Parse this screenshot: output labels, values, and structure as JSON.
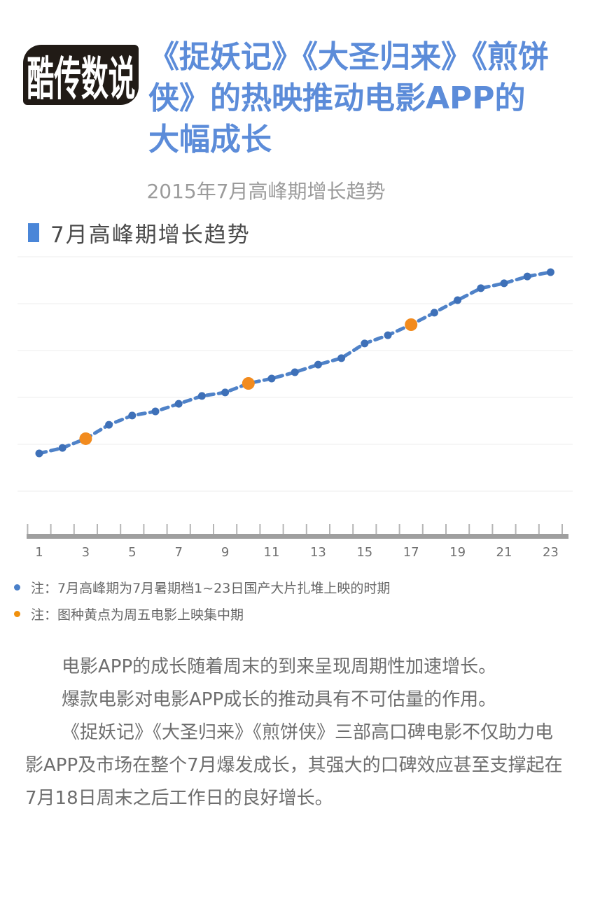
{
  "logo": {
    "text": "酷传数说"
  },
  "header": {
    "title_lines": [
      "《捉妖记》《大圣归来》《煎饼",
      "侠》的热映推动电影APP的",
      "大幅成长"
    ],
    "subtitle": "2015年7月高峰期增长趋势"
  },
  "section": {
    "title": "7月高峰期增长趋势"
  },
  "chart_data": {
    "type": "line",
    "title": "7月高峰期增长趋势",
    "xlabel": "",
    "ylabel": "",
    "x": [
      1,
      2,
      3,
      4,
      5,
      6,
      7,
      8,
      9,
      10,
      11,
      12,
      13,
      14,
      15,
      16,
      17,
      18,
      19,
      20,
      21,
      22,
      23
    ],
    "values": [
      4.3,
      7.1,
      11.8,
      18.9,
      23.6,
      25.7,
      29.6,
      33.6,
      35.4,
      40.0,
      42.5,
      45.7,
      49.6,
      52.9,
      60.4,
      64.6,
      70.0,
      76.1,
      82.5,
      88.6,
      91.1,
      94.6,
      96.8
    ],
    "value_note": "relative growth index estimated from gridlines; no y-axis labels shown",
    "ylim": [
      0,
      100
    ],
    "grid": true,
    "line_style": "dashed",
    "highlight_x": [
      3,
      10,
      17
    ],
    "x_tick_labels": [
      "1",
      "3",
      "5",
      "7",
      "9",
      "11",
      "13",
      "15",
      "17",
      "19",
      "21",
      "23"
    ],
    "line_color": "#4f82c8",
    "point_color": "#3e70b8",
    "highlight_color": "#f28b1e",
    "grid_color": "#ececec",
    "axis_bar_color": "#9f9f9f",
    "tick_color": "#b5b5b5",
    "tick_label_color": "#707070"
  },
  "notes": [
    {
      "text": "注：7月高峰期为7月暑期档1~23日国产大片扎堆上映的时期"
    },
    {
      "text": "注：图种黄点为周五电影上映集中期"
    }
  ],
  "body": {
    "paragraphs": [
      "电影APP的成长随着周末的到来呈现周期性加速增长。",
      "爆款电影对电影APP成长的推动具有不可估量的作用。",
      "《捉妖记》《大圣归来》《煎饼侠》三部高口碑电影不仅助力电影APP及市场在整个7月爆发成长，其强大的口碑效应甚至支撑起在7月18日周末之后工作日的良好增长。"
    ]
  },
  "colors": {
    "title-blue": "#5c8cd9",
    "marker-blue": "#4a86d8",
    "note-blue": "#4a80c9",
    "note-orange": "#f0900c",
    "logo-black": "#211b16"
  }
}
